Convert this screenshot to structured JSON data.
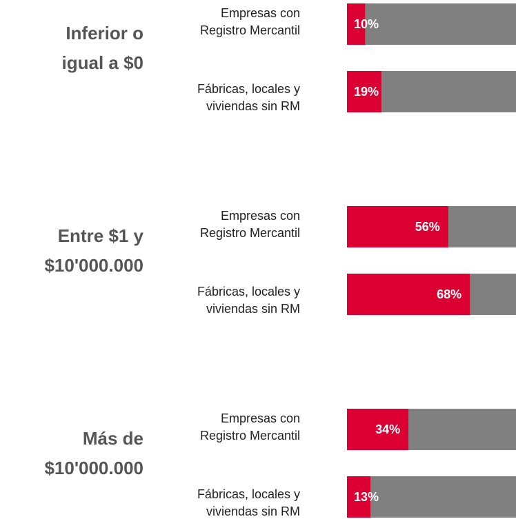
{
  "chart_data": {
    "type": "bar",
    "orientation": "horizontal",
    "categories": [
      [
        "Inferior o",
        "igual a $0"
      ],
      [
        "Entre $1 y",
        "$10'000.000"
      ],
      [
        "Más de",
        "$10'000.000"
      ]
    ],
    "series": [
      {
        "name": [
          "Empresas con",
          "Registro Mercantil"
        ],
        "color": "#dc0032",
        "values": [
          10,
          56,
          34
        ],
        "value_labels": [
          "10%",
          "56%",
          "34%"
        ]
      },
      {
        "name": [
          "Fábricas, locales y",
          "viviendas sin RM"
        ],
        "color": "#dc0032",
        "values": [
          19,
          68,
          13
        ],
        "value_labels": [
          "19%",
          "68%",
          "13%"
        ]
      }
    ],
    "track_color": "#808080",
    "xlim": [
      0,
      100
    ]
  }
}
